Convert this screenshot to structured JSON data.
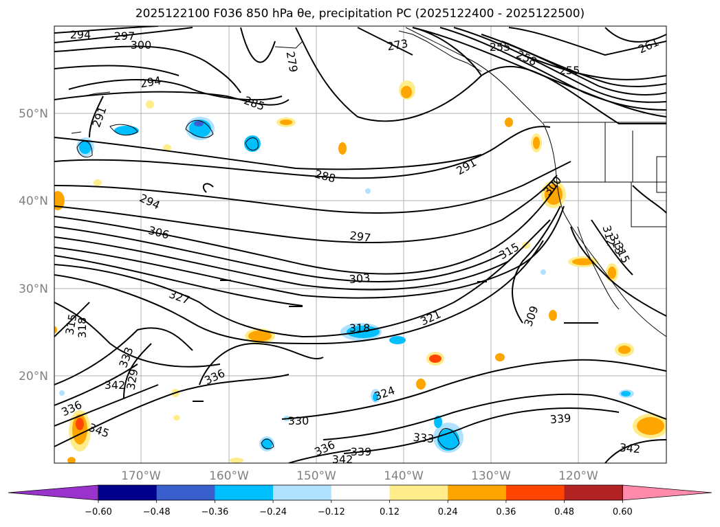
{
  "title": "2025122100 F036 850 hPa θe, precipitation PC (2025122400 - 2025122500)",
  "map": {
    "lat_labels": [
      "50°N",
      "40°N",
      "30°N",
      "20°N"
    ],
    "lon_labels": [
      "170°W",
      "160°W",
      "150°W",
      "140°W",
      "130°W",
      "120°W"
    ]
  },
  "contour_labels": [
    "294",
    "297",
    "300",
    "294",
    "291",
    "285",
    "273",
    "255",
    "258",
    "255",
    "261",
    "279",
    "288",
    "291",
    "294",
    "306",
    "297",
    "303",
    "300",
    "315",
    "327",
    "315",
    "318",
    "318",
    "321",
    "309",
    "312",
    "313",
    "315",
    "333",
    "342",
    "329",
    "336",
    "336",
    "324",
    "330",
    "333",
    "336",
    "342",
    "339",
    "339",
    "342",
    "345"
  ],
  "colorbar": {
    "ticks": [
      "−0.60",
      "−0.48",
      "−0.36",
      "−0.24",
      "−0.12",
      "0.12",
      "0.24",
      "0.36",
      "0.48",
      "0.60"
    ],
    "colors": [
      "#9933cc",
      "#00008b",
      "#3a5fcd",
      "#00bfff",
      "#b0e2ff",
      "#ffffff",
      "#ffec8b",
      "#ffa500",
      "#ff4500",
      "#b22222",
      "#ff8aab"
    ]
  }
}
